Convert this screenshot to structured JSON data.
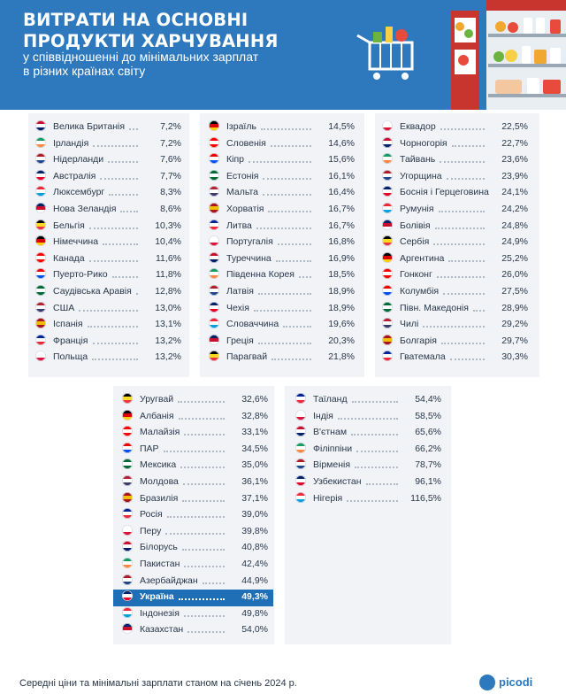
{
  "header": {
    "title_line1": "ВИТРАТИ НА ОСНОВНІ",
    "title_line2": "ПРОДУКТИ ХАРЧУВАННЯ",
    "subtitle_line1": "у співвідношенні до мінімальних зарплат",
    "subtitle_line2": "в різних країнах світу"
  },
  "footer": {
    "note": "Середні ціни та мінімальні зарплати станом на січень 2024 р.",
    "logo": "picodi"
  },
  "colors": {
    "header_bg": "#2e78bd",
    "panel_bg": "#f2f3f6",
    "highlight": "#1e6fb6",
    "text": "#27374a"
  },
  "chart_data": {
    "type": "table",
    "value_unit": "%",
    "highlighted": "Україна",
    "columns": [
      {
        "rows": [
          {
            "country": "Велика Британія",
            "value": "7,2%"
          },
          {
            "country": "Ірландія",
            "value": "7,2%"
          },
          {
            "country": "Нідерланди",
            "value": "7,6%"
          },
          {
            "country": "Австралія",
            "value": "7,7%"
          },
          {
            "country": "Люксембург",
            "value": "8,3%"
          },
          {
            "country": "Нова Зеландія",
            "value": "8,6%"
          },
          {
            "country": "Бельгія",
            "value": "10,3%"
          },
          {
            "country": "Німеччина",
            "value": "10,4%"
          },
          {
            "country": "Канада",
            "value": "11,6%"
          },
          {
            "country": "Пуерто-Рико",
            "value": "11,8%"
          },
          {
            "country": "Саудівська Аравія",
            "value": "12,8%"
          },
          {
            "country": "США",
            "value": "13,0%"
          },
          {
            "country": "Іспанія",
            "value": "13,1%"
          },
          {
            "country": "Франція",
            "value": "13,2%"
          },
          {
            "country": "Польща",
            "value": "13,2%"
          }
        ]
      },
      {
        "rows": [
          {
            "country": "Ізраїль",
            "value": "14,5%"
          },
          {
            "country": "Словенія",
            "value": "14,6%"
          },
          {
            "country": "Кіпр",
            "value": "15,6%"
          },
          {
            "country": "Естонія",
            "value": "16,1%"
          },
          {
            "country": "Мальта",
            "value": "16,4%"
          },
          {
            "country": "Хорватія",
            "value": "16,7%"
          },
          {
            "country": "Литва",
            "value": "16,7%"
          },
          {
            "country": "Португалія",
            "value": "16,8%"
          },
          {
            "country": "Туреччина",
            "value": "16,9%"
          },
          {
            "country": "Південна Корея",
            "value": "18,5%"
          },
          {
            "country": "Латвія",
            "value": "18,9%"
          },
          {
            "country": "Чехія",
            "value": "18,9%"
          },
          {
            "country": "Словаччина",
            "value": "19,6%"
          },
          {
            "country": "Греція",
            "value": "20,3%"
          },
          {
            "country": "Парагвай",
            "value": "21,8%"
          }
        ]
      },
      {
        "rows": [
          {
            "country": "Еквадор",
            "value": "22,5%"
          },
          {
            "country": "Чорногорія",
            "value": "22,7%"
          },
          {
            "country": "Тайвань",
            "value": "23,6%"
          },
          {
            "country": "Угорщина",
            "value": "23,9%"
          },
          {
            "country": "Боснія і Герцеговина",
            "value": "24,1%"
          },
          {
            "country": "Румунія",
            "value": "24,2%"
          },
          {
            "country": "Болівія",
            "value": "24,8%"
          },
          {
            "country": "Сербія",
            "value": "24,9%"
          },
          {
            "country": "Аргентина",
            "value": "25,2%"
          },
          {
            "country": "Гонконг",
            "value": "26,0%"
          },
          {
            "country": "Колумбія",
            "value": "27,5%"
          },
          {
            "country": "Півн. Македонія",
            "value": "28,9%"
          },
          {
            "country": "Чилі",
            "value": "29,2%"
          },
          {
            "country": "Болгарія",
            "value": "29,7%"
          },
          {
            "country": "Гватемала",
            "value": "30,3%"
          }
        ]
      },
      {
        "rows": [
          {
            "country": "Уругвай",
            "value": "32,6%"
          },
          {
            "country": "Албанія",
            "value": "32,8%"
          },
          {
            "country": "Малайзія",
            "value": "33,1%"
          },
          {
            "country": "ПАР",
            "value": "34,5%"
          },
          {
            "country": "Мексика",
            "value": "35,0%"
          },
          {
            "country": "Молдова",
            "value": "36,1%"
          },
          {
            "country": "Бразилія",
            "value": "37,1%"
          },
          {
            "country": "Росія",
            "value": "39,0%"
          },
          {
            "country": "Перу",
            "value": "39,8%"
          },
          {
            "country": "Білорусь",
            "value": "40,8%"
          },
          {
            "country": "Пакистан",
            "value": "42,4%"
          },
          {
            "country": "Азербайджан",
            "value": "44,9%"
          },
          {
            "country": "Україна",
            "value": "49,3%"
          },
          {
            "country": "Індонезія",
            "value": "49,8%"
          },
          {
            "country": "Казахстан",
            "value": "54,0%"
          }
        ]
      },
      {
        "rows": [
          {
            "country": "Таїланд",
            "value": "54,4%"
          },
          {
            "country": "Індія",
            "value": "58,5%"
          },
          {
            "country": "В'єтнам",
            "value": "65,6%"
          },
          {
            "country": "Філіппіни",
            "value": "66,2%"
          },
          {
            "country": "Вірменія",
            "value": "78,7%"
          },
          {
            "country": "Узбекистан",
            "value": "96,1%"
          },
          {
            "country": "Нігерія",
            "value": "116,5%"
          }
        ]
      }
    ]
  }
}
